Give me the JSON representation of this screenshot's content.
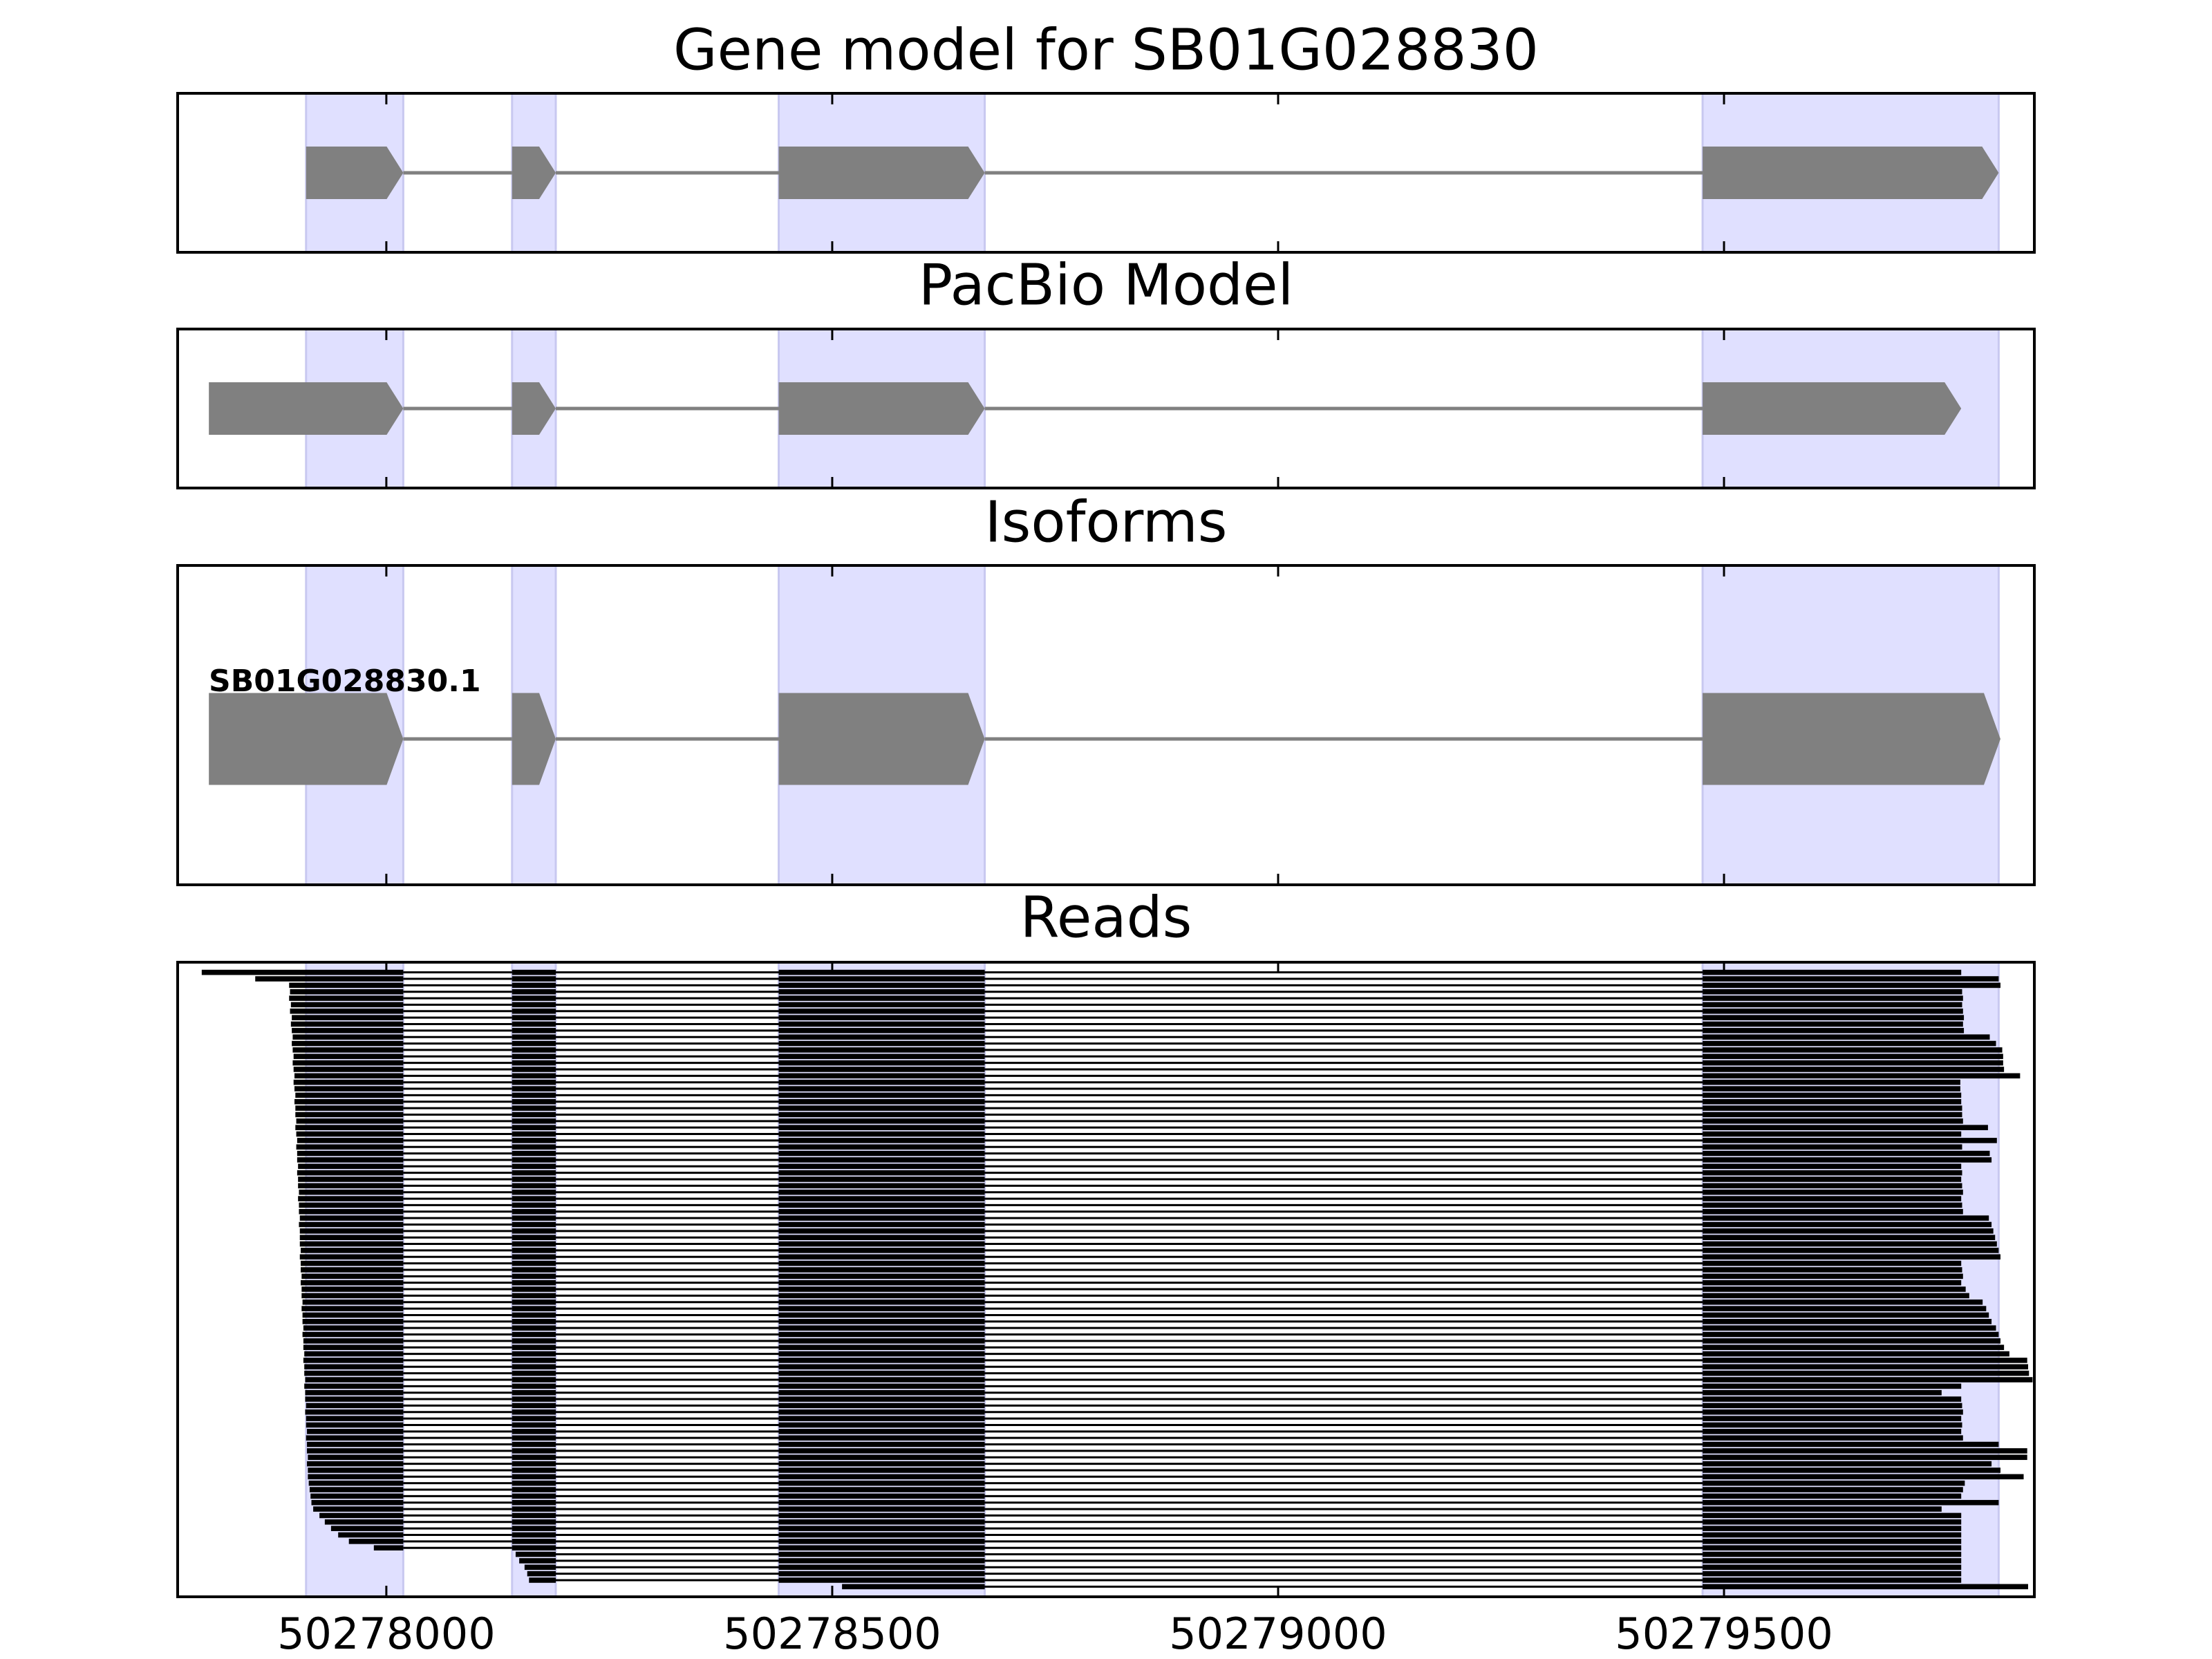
{
  "chart_data": [
    {
      "type": "gene",
      "title": "Gene model for SB01G028830",
      "color": "#808080",
      "highlight_color": "#e0e0ff",
      "exons": [
        [
          50277910,
          50278019
        ],
        [
          50278141,
          50278190
        ],
        [
          50278440,
          50278671
        ],
        [
          50279476,
          50279808
        ]
      ],
      "xlim": [
        50277766,
        50279848
      ],
      "xticks": [
        50278000,
        50278500,
        50279000,
        50279500
      ]
    },
    {
      "type": "gene",
      "title": "PacBio Model",
      "color": "#808080",
      "exons": [
        [
          50277801,
          50278019
        ],
        [
          50278141,
          50278190
        ],
        [
          50278440,
          50278671
        ],
        [
          50279476,
          50279766
        ]
      ],
      "xlim": [
        50277766,
        50279848
      ],
      "xticks": [
        50278000,
        50278500,
        50279000,
        50279500
      ]
    },
    {
      "type": "gene",
      "title": "Isoforms",
      "label": "SB01G028830.1",
      "color": "#808080",
      "exons": [
        [
          50277801,
          50278019
        ],
        [
          50278141,
          50278190
        ],
        [
          50278440,
          50278671
        ],
        [
          50279476,
          50279810
        ]
      ],
      "xlim": [
        50277766,
        50279848
      ],
      "xticks": [
        50278000,
        50278500,
        50279000,
        50279500
      ]
    },
    {
      "type": "reads",
      "title": "Reads",
      "color": "#000000",
      "introns": [
        [
          50278019,
          50278141
        ],
        [
          50278190,
          50278440
        ],
        [
          50278671,
          50279476
        ]
      ],
      "starts": [
        50277793,
        50277853,
        50277891,
        50277892,
        50277891,
        50277893,
        50277892,
        50277894,
        50277893,
        50277894,
        50277895,
        50277894,
        50277895,
        50277896,
        50277895,
        50277896,
        50277897,
        50277896,
        50277897,
        50277898,
        50277897,
        50277898,
        50277898,
        50277899,
        50277898,
        50277899,
        50277900,
        50277899,
        50277900,
        50277900,
        50277901,
        50277900,
        50277901,
        50277901,
        50277902,
        50277901,
        50277902,
        50277902,
        50277903,
        50277902,
        50277903,
        50277903,
        50277903,
        50277904,
        50277903,
        50277904,
        50277904,
        50277905,
        50277904,
        50277905,
        50277905,
        50277906,
        50277905,
        50277906,
        50277906,
        50277907,
        50277906,
        50277907,
        50277907,
        50277908,
        50277907,
        50277908,
        50277908,
        50277909,
        50277908,
        50277909,
        50277909,
        50277910,
        50277909,
        50277910,
        50277910,
        50277911,
        50277910,
        50277911,
        50277911,
        50277912,
        50277911,
        50277912,
        50277912,
        50277913,
        50277914,
        50277915,
        50277916,
        50277918,
        50277925,
        50277931,
        50277938,
        50277946,
        50277958,
        50277986,
        50278145,
        50278149,
        50278155,
        50278158,
        50278160,
        50278511
      ],
      "ends": [
        50279766,
        50279808,
        50279810,
        50279767,
        50279768,
        50279767,
        50279768,
        50279769,
        50279768,
        50279769,
        50279798,
        50279805,
        50279812,
        50279813,
        50279813,
        50279814,
        50279832,
        50279765,
        50279765,
        50279766,
        50279766,
        50279767,
        50279767,
        50279768,
        50279796,
        50279766,
        50279806,
        50279767,
        50279798,
        50279800,
        50279766,
        50279767,
        50279766,
        50279767,
        50279768,
        50279766,
        50279767,
        50279768,
        50279797,
        50279800,
        50279802,
        50279804,
        50279806,
        50279808,
        50279810,
        50279766,
        50279767,
        50279768,
        50279766,
        50279771,
        50279775,
        50279790,
        50279794,
        50279797,
        50279800,
        50279805,
        50279808,
        50279810,
        50279814,
        50279820,
        50279840,
        50279841,
        50279842,
        50279846,
        50279766,
        50279744,
        50279766,
        50279767,
        50279768,
        50279766,
        50279767,
        50279766,
        50279768,
        50279808,
        50279840,
        50279840,
        50279800,
        50279810,
        50279836,
        50279770,
        50279768,
        50279766,
        50279808,
        50279744,
        50279766,
        50279766,
        50279766,
        50279766,
        50279766,
        50279766,
        50279766,
        50279766,
        50279766,
        50279766,
        50279766,
        50279841
      ],
      "xlim": [
        50277766,
        50279848
      ],
      "xticks": [
        50278000,
        50278500,
        50279000,
        50279500
      ]
    }
  ]
}
